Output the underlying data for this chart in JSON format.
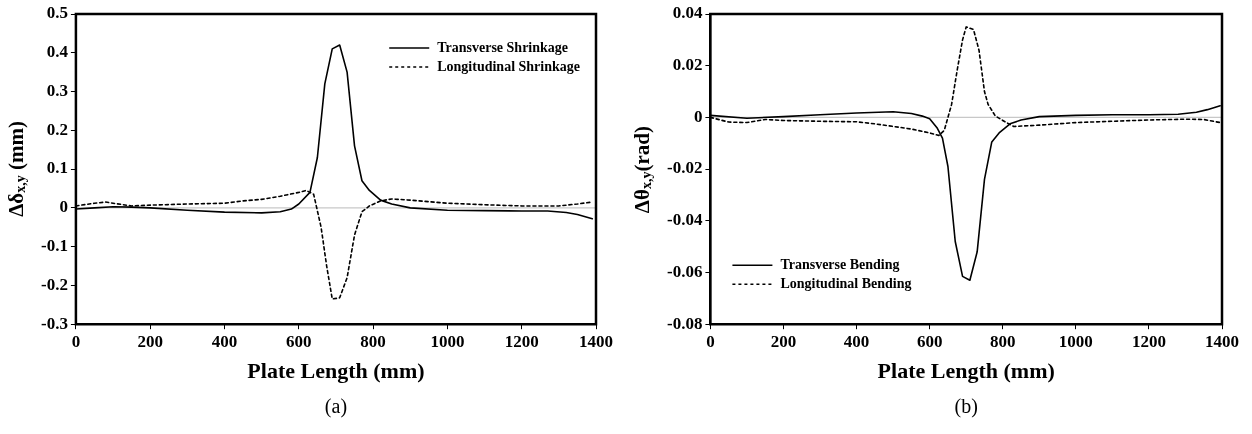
{
  "chart_data": [
    {
      "type": "line",
      "xlabel": "Plate Length (mm)",
      "ylabel": "Δδ$_{x,y}$ (mm)",
      "annotations": [
        "(a)"
      ],
      "xlim": [
        0,
        1400
      ],
      "ylim": [
        -0.3,
        0.5
      ],
      "xticks": [
        0,
        200,
        400,
        600,
        800,
        1000,
        1200,
        1400
      ],
      "yticks": [
        -0.3,
        -0.2,
        -0.1,
        0,
        0.1,
        0.2,
        0.3,
        0.4,
        0.5
      ],
      "grid": false,
      "legend": "top right",
      "marker": "none",
      "ref_lines": [
        {
          "axis": "y",
          "value": 0,
          "color": "#c8c8c8"
        }
      ],
      "series": [
        {
          "name": "Transverse Shrinkage",
          "color": "#000000",
          "line_style": "solid",
          "x": [
            0,
            50,
            100,
            150,
            200,
            300,
            400,
            500,
            550,
            580,
            600,
            630,
            650,
            670,
            690,
            710,
            730,
            750,
            770,
            790,
            820,
            850,
            900,
            1000,
            1100,
            1200,
            1270,
            1320,
            1350,
            1390
          ],
          "values": [
            -0.003,
            0,
            0.003,
            0.002,
            0,
            -0.006,
            -0.011,
            -0.013,
            -0.01,
            -0.003,
            0.01,
            0.04,
            0.13,
            0.32,
            0.41,
            0.42,
            0.35,
            0.16,
            0.07,
            0.045,
            0.02,
            0.01,
            0,
            -0.006,
            -0.007,
            -0.008,
            -0.008,
            -0.012,
            -0.017,
            -0.028
          ]
        },
        {
          "name": "Longitudinal Shrinkage",
          "color": "#000000",
          "line_style": "dotted",
          "x": [
            0,
            50,
            80,
            100,
            150,
            200,
            300,
            400,
            450,
            500,
            550,
            600,
            620,
            640,
            660,
            675,
            690,
            710,
            730,
            750,
            770,
            790,
            820,
            850,
            900,
            1000,
            1100,
            1200,
            1300,
            1350,
            1390
          ],
          "values": [
            0.005,
            0.012,
            0.015,
            0.012,
            0.005,
            0.007,
            0.01,
            0.012,
            0.018,
            0.022,
            0.03,
            0.04,
            0.045,
            0.035,
            -0.05,
            -0.15,
            -0.235,
            -0.232,
            -0.18,
            -0.07,
            -0.01,
            0.005,
            0.018,
            0.023,
            0.02,
            0.012,
            0.008,
            0.005,
            0.005,
            0.01,
            0.015
          ]
        }
      ]
    },
    {
      "type": "line",
      "xlabel": "Plate Length (mm)",
      "ylabel": "Δθ$_{x,y}$(rad)",
      "annotations": [
        "(b)"
      ],
      "xlim": [
        0,
        1400
      ],
      "ylim": [
        -0.08,
        0.04
      ],
      "xticks": [
        0,
        200,
        400,
        600,
        800,
        1000,
        1200,
        1400
      ],
      "yticks": [
        -0.08,
        -0.06,
        -0.04,
        -0.02,
        0,
        0.02,
        0.04
      ],
      "grid": false,
      "legend": "bottom left",
      "marker": "none",
      "ref_lines": [
        {
          "axis": "y",
          "value": 0,
          "color": "#c8c8c8"
        }
      ],
      "series": [
        {
          "name": "Transverse Bending",
          "color": "#000000",
          "line_style": "solid",
          "x": [
            0,
            100,
            200,
            300,
            400,
            500,
            550,
            580,
            600,
            620,
            635,
            650,
            670,
            690,
            710,
            730,
            750,
            770,
            790,
            820,
            850,
            900,
            1000,
            1100,
            1200,
            1280,
            1330,
            1360,
            1395
          ],
          "values": [
            0.0008,
            -0.0003,
            0.0003,
            0.001,
            0.0017,
            0.0022,
            0.0015,
            0.0005,
            -0.0005,
            -0.004,
            -0.008,
            -0.019,
            -0.048,
            -0.0615,
            -0.063,
            -0.052,
            -0.024,
            -0.0095,
            -0.006,
            -0.0025,
            -0.001,
            0.0003,
            0.0008,
            0.001,
            0.001,
            0.0012,
            0.002,
            0.003,
            0.0045
          ]
        },
        {
          "name": "Longitudinal Bending",
          "color": "#000000",
          "line_style": "dotted",
          "x": [
            0,
            50,
            100,
            150,
            200,
            300,
            400,
            450,
            500,
            550,
            600,
            625,
            640,
            660,
            675,
            690,
            700,
            720,
            735,
            750,
            760,
            780,
            810,
            830,
            900,
            1000,
            1100,
            1200,
            1300,
            1350,
            1395
          ],
          "values": [
            0,
            -0.0018,
            -0.002,
            -0.0008,
            -0.0012,
            -0.0015,
            -0.0017,
            -0.0025,
            -0.0035,
            -0.0045,
            -0.006,
            -0.007,
            -0.005,
            0.005,
            0.018,
            0.03,
            0.035,
            0.034,
            0.026,
            0.01,
            0.005,
            0.0005,
            -0.002,
            -0.0035,
            -0.003,
            -0.002,
            -0.0015,
            -0.001,
            -0.0007,
            -0.0008,
            -0.002
          ]
        }
      ]
    }
  ]
}
